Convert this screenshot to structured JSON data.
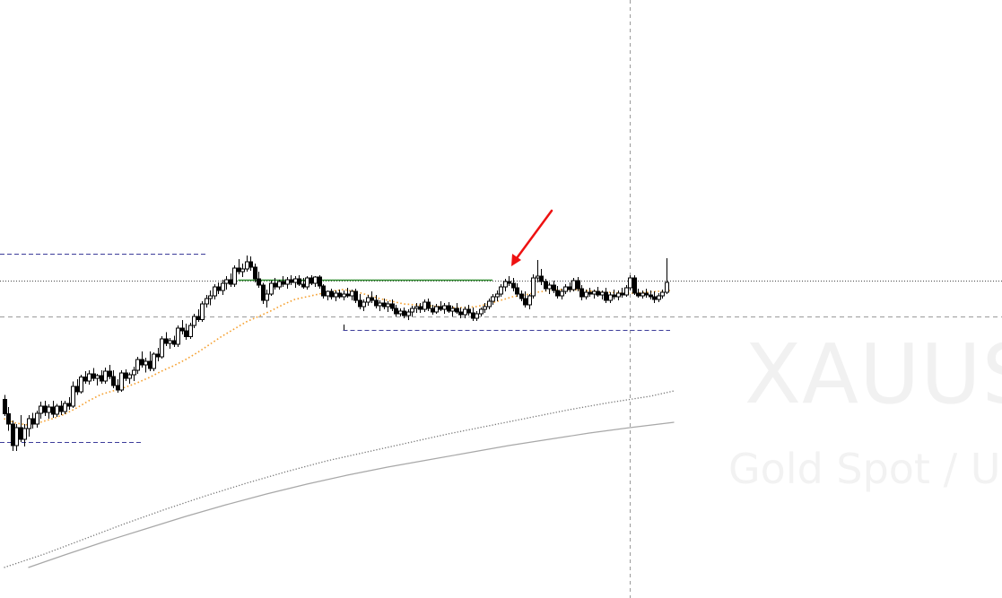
{
  "watermark": {
    "symbol": "XAUUS",
    "description": "Gold Spot / U."
  },
  "colors": {
    "candle": "#000000",
    "ema_fast": "#f5a030",
    "ma_dotted": "#7a7a7a",
    "ma_solid": "#a8a8a8",
    "resistance_line": "#2e8b2e",
    "range_lines": "#3d3d9a",
    "price_line": "#444444",
    "grid_line": "#9a9a9a",
    "arrow": "#ee1111",
    "watermark": "#f1f1f1"
  },
  "chart_data": {
    "type": "candlestick",
    "x_range": [
      0,
      260
    ],
    "y_range": [
      0,
      1000
    ],
    "candles": [
      {
        "o": 355,
        "h": 365,
        "l": 318,
        "c": 323
      },
      {
        "o": 323,
        "h": 338,
        "l": 285,
        "c": 300
      },
      {
        "o": 300,
        "h": 308,
        "l": 240,
        "c": 252
      },
      {
        "o": 252,
        "h": 300,
        "l": 240,
        "c": 292
      },
      {
        "o": 292,
        "h": 320,
        "l": 260,
        "c": 266
      },
      {
        "o": 266,
        "h": 300,
        "l": 250,
        "c": 290
      },
      {
        "o": 290,
        "h": 320,
        "l": 272,
        "c": 312
      },
      {
        "o": 312,
        "h": 325,
        "l": 290,
        "c": 300
      },
      {
        "o": 300,
        "h": 330,
        "l": 292,
        "c": 324
      },
      {
        "o": 324,
        "h": 350,
        "l": 312,
        "c": 340
      },
      {
        "o": 340,
        "h": 352,
        "l": 318,
        "c": 326
      },
      {
        "o": 326,
        "h": 344,
        "l": 312,
        "c": 338
      },
      {
        "o": 338,
        "h": 352,
        "l": 314,
        "c": 322
      },
      {
        "o": 322,
        "h": 345,
        "l": 316,
        "c": 340
      },
      {
        "o": 340,
        "h": 352,
        "l": 320,
        "c": 328
      },
      {
        "o": 328,
        "h": 352,
        "l": 322,
        "c": 346
      },
      {
        "o": 346,
        "h": 360,
        "l": 332,
        "c": 340
      },
      {
        "o": 340,
        "h": 395,
        "l": 336,
        "c": 384
      },
      {
        "o": 384,
        "h": 400,
        "l": 365,
        "c": 372
      },
      {
        "o": 372,
        "h": 410,
        "l": 368,
        "c": 405
      },
      {
        "o": 405,
        "h": 418,
        "l": 390,
        "c": 396
      },
      {
        "o": 396,
        "h": 420,
        "l": 388,
        "c": 412
      },
      {
        "o": 412,
        "h": 425,
        "l": 396,
        "c": 402
      },
      {
        "o": 402,
        "h": 412,
        "l": 386,
        "c": 408
      },
      {
        "o": 408,
        "h": 420,
        "l": 390,
        "c": 396
      },
      {
        "o": 396,
        "h": 426,
        "l": 390,
        "c": 418
      },
      {
        "o": 418,
        "h": 432,
        "l": 400,
        "c": 406
      },
      {
        "o": 406,
        "h": 420,
        "l": 380,
        "c": 386
      },
      {
        "o": 386,
        "h": 400,
        "l": 370,
        "c": 376
      },
      {
        "o": 376,
        "h": 420,
        "l": 372,
        "c": 414
      },
      {
        "o": 414,
        "h": 422,
        "l": 396,
        "c": 402
      },
      {
        "o": 402,
        "h": 415,
        "l": 390,
        "c": 410
      },
      {
        "o": 410,
        "h": 428,
        "l": 396,
        "c": 420
      },
      {
        "o": 420,
        "h": 450,
        "l": 412,
        "c": 444
      },
      {
        "o": 444,
        "h": 462,
        "l": 426,
        "c": 432
      },
      {
        "o": 432,
        "h": 448,
        "l": 415,
        "c": 440
      },
      {
        "o": 440,
        "h": 462,
        "l": 418,
        "c": 424
      },
      {
        "o": 424,
        "h": 460,
        "l": 418,
        "c": 456
      },
      {
        "o": 456,
        "h": 470,
        "l": 440,
        "c": 450
      },
      {
        "o": 450,
        "h": 496,
        "l": 446,
        "c": 490
      },
      {
        "o": 490,
        "h": 505,
        "l": 474,
        "c": 480
      },
      {
        "o": 480,
        "h": 492,
        "l": 468,
        "c": 486
      },
      {
        "o": 486,
        "h": 497,
        "l": 472,
        "c": 478
      },
      {
        "o": 478,
        "h": 520,
        "l": 472,
        "c": 514
      },
      {
        "o": 514,
        "h": 532,
        "l": 500,
        "c": 508
      },
      {
        "o": 508,
        "h": 524,
        "l": 488,
        "c": 495
      },
      {
        "o": 495,
        "h": 526,
        "l": 490,
        "c": 520
      },
      {
        "o": 520,
        "h": 546,
        "l": 514,
        "c": 540
      },
      {
        "o": 540,
        "h": 556,
        "l": 528,
        "c": 533
      },
      {
        "o": 533,
        "h": 574,
        "l": 528,
        "c": 568
      },
      {
        "o": 568,
        "h": 588,
        "l": 560,
        "c": 580
      },
      {
        "o": 580,
        "h": 598,
        "l": 565,
        "c": 586
      },
      {
        "o": 586,
        "h": 612,
        "l": 578,
        "c": 606
      },
      {
        "o": 606,
        "h": 616,
        "l": 590,
        "c": 598
      },
      {
        "o": 598,
        "h": 622,
        "l": 588,
        "c": 614
      },
      {
        "o": 614,
        "h": 630,
        "l": 600,
        "c": 622
      },
      {
        "o": 622,
        "h": 636,
        "l": 606,
        "c": 612
      },
      {
        "o": 612,
        "h": 654,
        "l": 606,
        "c": 648
      },
      {
        "o": 648,
        "h": 668,
        "l": 634,
        "c": 640
      },
      {
        "o": 640,
        "h": 658,
        "l": 628,
        "c": 646
      },
      {
        "o": 646,
        "h": 676,
        "l": 640,
        "c": 662
      },
      {
        "o": 662,
        "h": 674,
        "l": 642,
        "c": 650
      },
      {
        "o": 650,
        "h": 658,
        "l": 616,
        "c": 624
      },
      {
        "o": 624,
        "h": 640,
        "l": 604,
        "c": 610
      },
      {
        "o": 610,
        "h": 615,
        "l": 568,
        "c": 576
      },
      {
        "o": 576,
        "h": 600,
        "l": 560,
        "c": 590
      },
      {
        "o": 590,
        "h": 620,
        "l": 586,
        "c": 614
      },
      {
        "o": 614,
        "h": 626,
        "l": 600,
        "c": 606
      },
      {
        "o": 606,
        "h": 622,
        "l": 600,
        "c": 618
      },
      {
        "o": 618,
        "h": 630,
        "l": 606,
        "c": 612
      },
      {
        "o": 612,
        "h": 628,
        "l": 602,
        "c": 622
      },
      {
        "o": 622,
        "h": 632,
        "l": 610,
        "c": 616
      },
      {
        "o": 616,
        "h": 630,
        "l": 604,
        "c": 624
      },
      {
        "o": 624,
        "h": 632,
        "l": 608,
        "c": 612
      },
      {
        "o": 612,
        "h": 626,
        "l": 602,
        "c": 606
      },
      {
        "o": 606,
        "h": 630,
        "l": 600,
        "c": 626
      },
      {
        "o": 626,
        "h": 632,
        "l": 610,
        "c": 614
      },
      {
        "o": 614,
        "h": 630,
        "l": 606,
        "c": 628
      },
      {
        "o": 628,
        "h": 632,
        "l": 602,
        "c": 608
      },
      {
        "o": 608,
        "h": 612,
        "l": 580,
        "c": 586
      },
      {
        "o": 586,
        "h": 598,
        "l": 576,
        "c": 596
      },
      {
        "o": 596,
        "h": 602,
        "l": 578,
        "c": 584
      },
      {
        "o": 584,
        "h": 598,
        "l": 574,
        "c": 592
      },
      {
        "o": 592,
        "h": 600,
        "l": 580,
        "c": 584
      },
      {
        "o": 584,
        "h": 598,
        "l": 576,
        "c": 590
      },
      {
        "o": 590,
        "h": 604,
        "l": 582,
        "c": 586
      },
      {
        "o": 586,
        "h": 600,
        "l": 576,
        "c": 596
      },
      {
        "o": 596,
        "h": 602,
        "l": 570,
        "c": 576
      },
      {
        "o": 576,
        "h": 590,
        "l": 556,
        "c": 562
      },
      {
        "o": 562,
        "h": 578,
        "l": 552,
        "c": 572
      },
      {
        "o": 572,
        "h": 588,
        "l": 564,
        "c": 582
      },
      {
        "o": 582,
        "h": 596,
        "l": 570,
        "c": 576
      },
      {
        "o": 576,
        "h": 588,
        "l": 558,
        "c": 564
      },
      {
        "o": 564,
        "h": 576,
        "l": 552,
        "c": 570
      },
      {
        "o": 570,
        "h": 580,
        "l": 556,
        "c": 562
      },
      {
        "o": 562,
        "h": 574,
        "l": 550,
        "c": 568
      },
      {
        "o": 568,
        "h": 578,
        "l": 552,
        "c": 558
      },
      {
        "o": 558,
        "h": 566,
        "l": 540,
        "c": 546
      },
      {
        "o": 546,
        "h": 558,
        "l": 540,
        "c": 552
      },
      {
        "o": 552,
        "h": 560,
        "l": 536,
        "c": 542
      },
      {
        "o": 542,
        "h": 556,
        "l": 532,
        "c": 550
      },
      {
        "o": 550,
        "h": 564,
        "l": 540,
        "c": 558
      },
      {
        "o": 558,
        "h": 570,
        "l": 548,
        "c": 562
      },
      {
        "o": 562,
        "h": 570,
        "l": 548,
        "c": 556
      },
      {
        "o": 556,
        "h": 578,
        "l": 550,
        "c": 572
      },
      {
        "o": 572,
        "h": 580,
        "l": 552,
        "c": 558
      },
      {
        "o": 558,
        "h": 566,
        "l": 544,
        "c": 550
      },
      {
        "o": 550,
        "h": 568,
        "l": 546,
        "c": 562
      },
      {
        "o": 562,
        "h": 574,
        "l": 552,
        "c": 556
      },
      {
        "o": 556,
        "h": 570,
        "l": 546,
        "c": 564
      },
      {
        "o": 564,
        "h": 572,
        "l": 548,
        "c": 552
      },
      {
        "o": 552,
        "h": 564,
        "l": 540,
        "c": 558
      },
      {
        "o": 558,
        "h": 570,
        "l": 546,
        "c": 550
      },
      {
        "o": 550,
        "h": 560,
        "l": 536,
        "c": 544
      },
      {
        "o": 544,
        "h": 562,
        "l": 536,
        "c": 556
      },
      {
        "o": 556,
        "h": 566,
        "l": 542,
        "c": 548
      },
      {
        "o": 548,
        "h": 560,
        "l": 530,
        "c": 536
      },
      {
        "o": 536,
        "h": 552,
        "l": 530,
        "c": 546
      },
      {
        "o": 546,
        "h": 560,
        "l": 540,
        "c": 556
      },
      {
        "o": 556,
        "h": 570,
        "l": 548,
        "c": 562
      },
      {
        "o": 562,
        "h": 580,
        "l": 556,
        "c": 574
      },
      {
        "o": 574,
        "h": 590,
        "l": 566,
        "c": 584
      },
      {
        "o": 584,
        "h": 598,
        "l": 574,
        "c": 590
      },
      {
        "o": 590,
        "h": 612,
        "l": 584,
        "c": 606
      },
      {
        "o": 606,
        "h": 624,
        "l": 596,
        "c": 618
      },
      {
        "o": 618,
        "h": 630,
        "l": 608,
        "c": 614
      },
      {
        "o": 614,
        "h": 626,
        "l": 596,
        "c": 604
      },
      {
        "o": 604,
        "h": 614,
        "l": 584,
        "c": 590
      },
      {
        "o": 590,
        "h": 598,
        "l": 574,
        "c": 580
      },
      {
        "o": 580,
        "h": 596,
        "l": 560,
        "c": 566
      },
      {
        "o": 566,
        "h": 590,
        "l": 556,
        "c": 586
      },
      {
        "o": 586,
        "h": 634,
        "l": 580,
        "c": 626
      },
      {
        "o": 626,
        "h": 666,
        "l": 616,
        "c": 630
      },
      {
        "o": 630,
        "h": 646,
        "l": 610,
        "c": 618
      },
      {
        "o": 618,
        "h": 624,
        "l": 596,
        "c": 602
      },
      {
        "o": 602,
        "h": 616,
        "l": 590,
        "c": 610
      },
      {
        "o": 610,
        "h": 620,
        "l": 592,
        "c": 598
      },
      {
        "o": 598,
        "h": 608,
        "l": 580,
        "c": 586
      },
      {
        "o": 586,
        "h": 602,
        "l": 578,
        "c": 596
      },
      {
        "o": 596,
        "h": 612,
        "l": 590,
        "c": 606
      },
      {
        "o": 606,
        "h": 616,
        "l": 594,
        "c": 600
      },
      {
        "o": 600,
        "h": 626,
        "l": 596,
        "c": 620
      },
      {
        "o": 620,
        "h": 628,
        "l": 596,
        "c": 602
      },
      {
        "o": 602,
        "h": 610,
        "l": 576,
        "c": 584
      },
      {
        "o": 584,
        "h": 600,
        "l": 578,
        "c": 594
      },
      {
        "o": 594,
        "h": 604,
        "l": 584,
        "c": 590
      },
      {
        "o": 590,
        "h": 600,
        "l": 580,
        "c": 596
      },
      {
        "o": 596,
        "h": 606,
        "l": 584,
        "c": 588
      },
      {
        "o": 588,
        "h": 598,
        "l": 578,
        "c": 594
      },
      {
        "o": 594,
        "h": 604,
        "l": 570,
        "c": 576
      },
      {
        "o": 576,
        "h": 594,
        "l": 570,
        "c": 588
      },
      {
        "o": 588,
        "h": 600,
        "l": 578,
        "c": 584
      },
      {
        "o": 584,
        "h": 598,
        "l": 576,
        "c": 592
      },
      {
        "o": 592,
        "h": 604,
        "l": 582,
        "c": 588
      },
      {
        "o": 588,
        "h": 610,
        "l": 584,
        "c": 604
      },
      {
        "o": 604,
        "h": 632,
        "l": 598,
        "c": 626
      },
      {
        "o": 626,
        "h": 632,
        "l": 588,
        "c": 592
      },
      {
        "o": 592,
        "h": 602,
        "l": 582,
        "c": 586
      },
      {
        "o": 586,
        "h": 598,
        "l": 580,
        "c": 592
      },
      {
        "o": 592,
        "h": 602,
        "l": 582,
        "c": 588
      },
      {
        "o": 588,
        "h": 598,
        "l": 578,
        "c": 584
      },
      {
        "o": 584,
        "h": 596,
        "l": 570,
        "c": 578
      },
      {
        "o": 578,
        "h": 592,
        "l": 572,
        "c": 586
      },
      {
        "o": 586,
        "h": 600,
        "l": 580,
        "c": 594
      },
      {
        "o": 594,
        "h": 670,
        "l": 590,
        "c": 616
      }
    ],
    "ema_fast": [
      [
        0,
        312
      ],
      [
        3,
        302
      ],
      [
        6,
        298
      ],
      [
        9,
        304
      ],
      [
        12,
        312
      ],
      [
        15,
        322
      ],
      [
        18,
        336
      ],
      [
        21,
        352
      ],
      [
        24,
        366
      ],
      [
        27,
        374
      ],
      [
        30,
        382
      ],
      [
        33,
        392
      ],
      [
        36,
        404
      ],
      [
        39,
        418
      ],
      [
        42,
        430
      ],
      [
        45,
        444
      ],
      [
        48,
        460
      ],
      [
        51,
        478
      ],
      [
        54,
        496
      ],
      [
        57,
        512
      ],
      [
        60,
        528
      ],
      [
        63,
        540
      ],
      [
        66,
        552
      ],
      [
        69,
        566
      ],
      [
        72,
        578
      ],
      [
        75,
        584
      ],
      [
        78,
        590
      ],
      [
        81,
        596
      ],
      [
        84,
        600
      ],
      [
        87,
        596
      ],
      [
        90,
        588
      ],
      [
        93,
        580
      ],
      [
        96,
        574
      ],
      [
        99,
        568
      ],
      [
        102,
        566
      ],
      [
        105,
        564
      ],
      [
        108,
        562
      ],
      [
        111,
        560
      ],
      [
        114,
        560
      ],
      [
        117,
        562
      ],
      [
        120,
        568
      ],
      [
        123,
        576
      ],
      [
        126,
        584
      ],
      [
        129,
        588
      ],
      [
        132,
        594
      ],
      [
        135,
        598
      ],
      [
        138,
        600
      ],
      [
        141,
        600
      ],
      [
        144,
        598
      ],
      [
        147,
        596
      ],
      [
        150,
        594
      ],
      [
        153,
        592
      ],
      [
        156,
        592
      ],
      [
        159,
        594
      ],
      [
        162,
        596
      ],
      [
        165,
        598
      ]
    ],
    "ma_dotted": [
      [
        0,
        -20
      ],
      [
        10,
        10
      ],
      [
        20,
        44
      ],
      [
        30,
        78
      ],
      [
        40,
        110
      ],
      [
        50,
        140
      ],
      [
        60,
        168
      ],
      [
        70,
        194
      ],
      [
        80,
        218
      ],
      [
        90,
        238
      ],
      [
        100,
        258
      ],
      [
        110,
        278
      ],
      [
        120,
        296
      ],
      [
        130,
        314
      ],
      [
        140,
        332
      ],
      [
        150,
        348
      ],
      [
        160,
        362
      ],
      [
        166,
        374
      ]
    ],
    "ma_solid": [
      [
        6,
        -20
      ],
      [
        15,
        8
      ],
      [
        25,
        38
      ],
      [
        35,
        66
      ],
      [
        45,
        94
      ],
      [
        55,
        120
      ],
      [
        65,
        144
      ],
      [
        75,
        166
      ],
      [
        85,
        186
      ],
      [
        95,
        204
      ],
      [
        105,
        220
      ],
      [
        115,
        236
      ],
      [
        125,
        252
      ],
      [
        135,
        266
      ],
      [
        145,
        280
      ],
      [
        155,
        292
      ],
      [
        166,
        304
      ]
    ],
    "levels": {
      "current_price": 620,
      "support_dashed": 540,
      "upper_range": 680,
      "lower_range": 260,
      "lower_mid": 510,
      "resistance": 622
    },
    "resistance_span": [
      58,
      121
    ],
    "upper_range_span": [
      -1,
      50
    ],
    "lower_range_span": [
      -1,
      34
    ],
    "lower_mid_span": [
      84,
      165
    ],
    "vertical_marker_x": 155,
    "arrow_target": [
      125,
      648
    ]
  }
}
